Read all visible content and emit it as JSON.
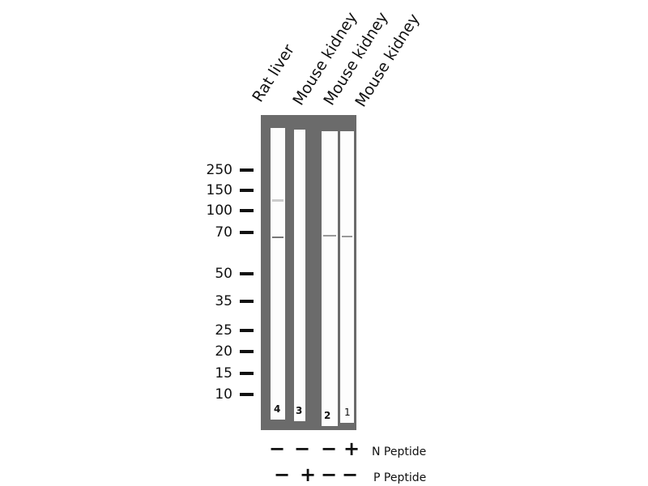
{
  "lanes": [
    "Rat liver",
    "Mouse kidney",
    "Mouse kidney",
    "Mouse kidney"
  ],
  "lane_numbers": [
    "4",
    "3",
    "2",
    "1"
  ],
  "markers": [
    "250",
    "150",
    "100",
    "70",
    "50",
    "35",
    "25",
    "20",
    "15",
    "10"
  ],
  "treatments": [
    {
      "label": "N Peptide",
      "signs": [
        "−",
        "−",
        "−",
        "+"
      ]
    },
    {
      "label": "P Peptide",
      "signs": [
        "−",
        "+",
        "−",
        "−"
      ]
    }
  ],
  "colors": {
    "membrane": "#6b6b6b",
    "strip": "#fdfdfd"
  }
}
